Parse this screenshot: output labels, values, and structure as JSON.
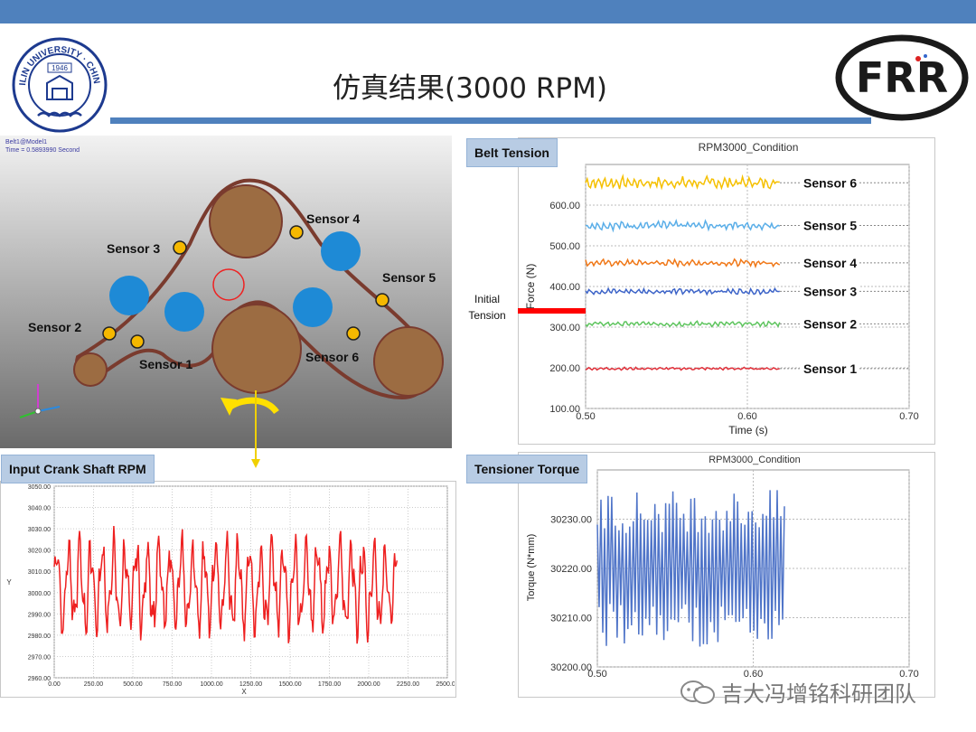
{
  "slide": {
    "title": "仿真结果(3000 RPM)",
    "logo_left_text": "JILIN UNIVERSITY · CHINA",
    "logo_left_year": "1946",
    "logo_right_text": "FRR",
    "watermark": "吉大冯增铭科研团队",
    "colors": {
      "topbar": "#4f81bd",
      "accent_rule": "#4f81bd",
      "label_bg": "#b8cce4"
    }
  },
  "model_view": {
    "header_line1": "Belt1@Model1",
    "header_line2": "Time = 0.5893990  Second",
    "sensor_labels": [
      "Sensor 1",
      "Sensor 2",
      "Sensor 3",
      "Sensor 4",
      "Sensor 5",
      "Sensor 6"
    ]
  },
  "chart_data": [
    {
      "id": "belt_tension",
      "type": "line",
      "panel_label": "Belt Tension",
      "title": "RPM3000_Condition",
      "xlabel": "Time (s)",
      "ylabel": "Force (N)",
      "xlim": [
        0.5,
        0.7
      ],
      "ylim": [
        100,
        700
      ],
      "x_ticks": [
        "0.50",
        "0.60",
        "0.70"
      ],
      "y_ticks": [
        "100.00",
        "200.00",
        "300.00",
        "400.00",
        "500.00",
        "600.00"
      ],
      "annotation": {
        "label_line1": "Initial",
        "label_line2": "Tension",
        "value": 340
      },
      "x_range_data": [
        0.5,
        0.62
      ],
      "series": [
        {
          "name": "Sensor 6",
          "color": "#f5c000",
          "mean": 655,
          "amplitude": 14
        },
        {
          "name": "Sensor 5",
          "color": "#5aaee8",
          "mean": 550,
          "amplitude": 10
        },
        {
          "name": "Sensor 4",
          "color": "#f07818",
          "mean": 458,
          "amplitude": 8
        },
        {
          "name": "Sensor 3",
          "color": "#3d64c8",
          "mean": 388,
          "amplitude": 7
        },
        {
          "name": "Sensor 2",
          "color": "#5ec45e",
          "mean": 308,
          "amplitude": 6
        },
        {
          "name": "Sensor 1",
          "color": "#e0303a",
          "mean": 198,
          "amplitude": 3
        }
      ]
    },
    {
      "id": "crank_rpm",
      "type": "line",
      "panel_label": "Input Crank Shaft RPM",
      "xlabel": "X",
      "ylabel": "Y",
      "xlim": [
        0,
        2500
      ],
      "ylim": [
        2960,
        3050
      ],
      "x_ticks": [
        "0.00",
        "250.00",
        "500.00",
        "750.00",
        "1000.00",
        "1250.00",
        "1500.00",
        "1750.00",
        "2000.00",
        "2250.00",
        "2500.00"
      ],
      "y_ticks": [
        "2960.00",
        "2970.00",
        "2980.00",
        "2990.00",
        "3000.00",
        "3010.00",
        "3020.00",
        "3030.00",
        "3040.00",
        "3050.00"
      ],
      "series": [
        {
          "name": "",
          "color": "#ee2020",
          "x_range": [
            0,
            2180
          ],
          "mean": 3003,
          "amplitude": 22,
          "period": 72
        }
      ]
    },
    {
      "id": "tensioner_torque",
      "type": "line",
      "panel_label": "Tensioner Torque",
      "title": "RPM3000_Condition",
      "ylabel": "Torque (N*mm)",
      "xlim": [
        0.5,
        0.7
      ],
      "ylim": [
        30200,
        30240
      ],
      "x_ticks": [
        "0.50",
        "0.60",
        "0.70"
      ],
      "y_ticks": [
        "30200.00",
        "30210.00",
        "30220.00",
        "30230.00"
      ],
      "series": [
        {
          "name": "",
          "color": "#4f74c8",
          "x_range": [
            0.5,
            0.62
          ],
          "mean": 30220,
          "amplitude": 16
        }
      ]
    }
  ]
}
